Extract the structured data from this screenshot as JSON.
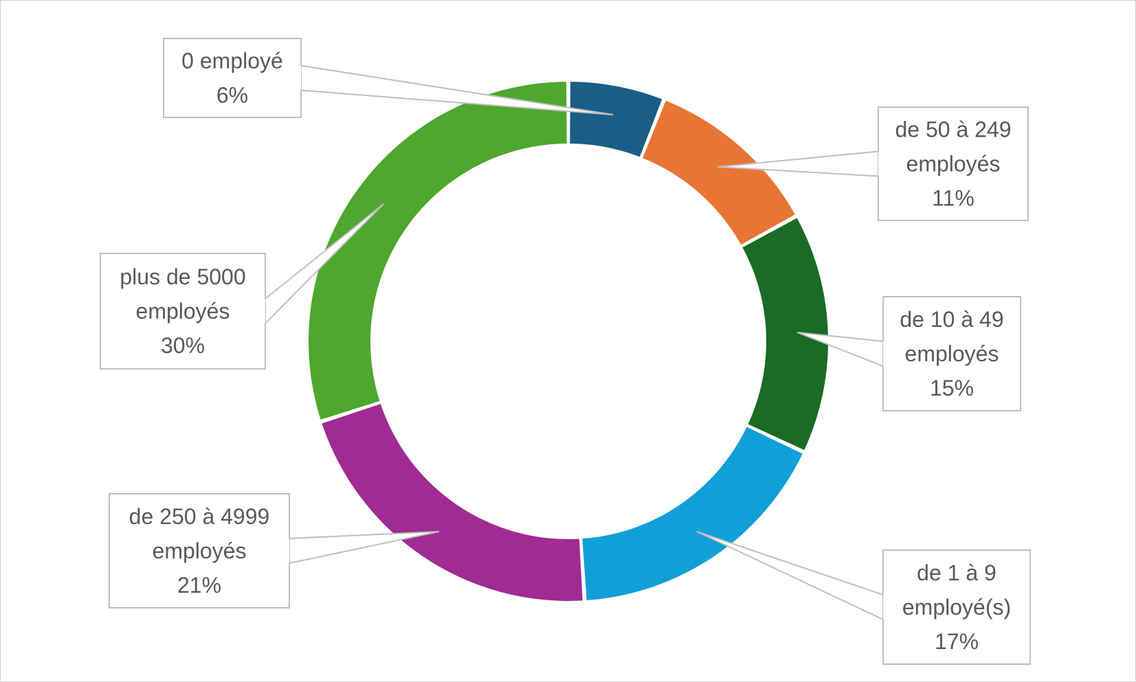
{
  "chart_data": {
    "type": "pie",
    "variant": "donut",
    "title": "",
    "slices": [
      {
        "label_lines": [
          "0 employé"
        ],
        "percent_label": "6%",
        "value": 6,
        "color": "#1a5e86"
      },
      {
        "label_lines": [
          "de 50 à 249",
          "employés"
        ],
        "percent_label": "11%",
        "value": 11,
        "color": "#e87533"
      },
      {
        "label_lines": [
          "de 10 à 49",
          "employés"
        ],
        "percent_label": "15%",
        "value": 15,
        "color": "#1a6b23"
      },
      {
        "label_lines": [
          "de 1 à 9",
          "employé(s)"
        ],
        "percent_label": "17%",
        "value": 17,
        "color": "#119fd8"
      },
      {
        "label_lines": [
          "de 250 à 4999",
          "employés"
        ],
        "percent_label": "21%",
        "value": 21,
        "color": "#a02b93"
      },
      {
        "label_lines": [
          "plus de 5000",
          "employés"
        ],
        "percent_label": "30%",
        "value": 30,
        "color": "#4ea72e"
      }
    ],
    "legend": "none",
    "data_labels": "callouts"
  }
}
